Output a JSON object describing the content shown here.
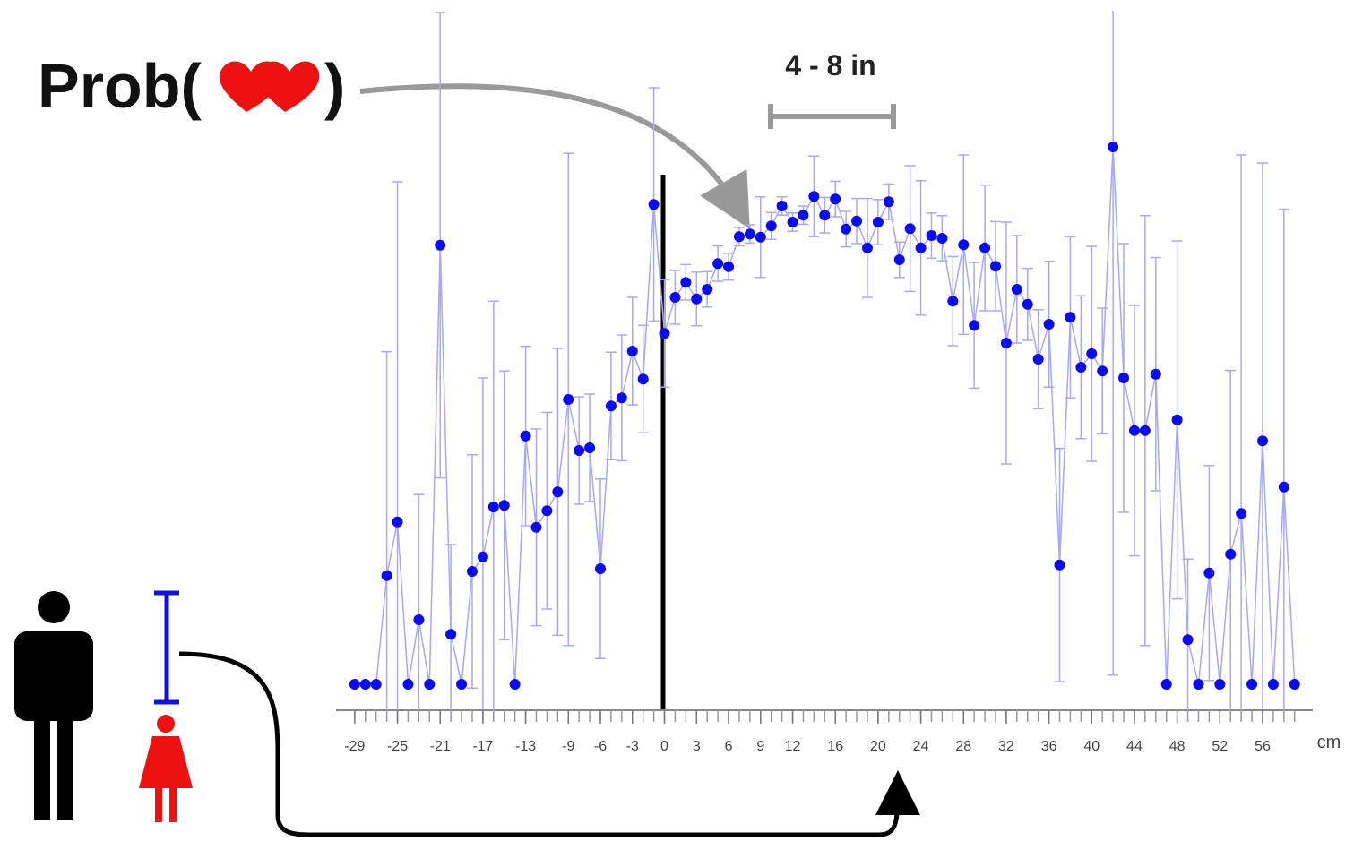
{
  "chart_data": {
    "type": "errorbar",
    "title_left": "Prob(",
    "title_right": ")",
    "bracket_label": "4 - 8 in",
    "x_label": "cm",
    "x": [
      -29,
      -28,
      -27,
      -26,
      -25,
      -24,
      -23,
      -22,
      -21,
      -20,
      -19,
      -18,
      -17,
      -16,
      -15,
      -14,
      -13,
      -12,
      -11,
      -10,
      -9,
      -8,
      -7,
      -6,
      -5,
      -4,
      -3,
      -2,
      -1,
      0,
      1,
      2,
      3,
      4,
      5,
      6,
      7,
      8,
      9,
      10,
      11,
      12,
      13,
      14,
      15,
      16,
      17,
      18,
      19,
      20,
      21,
      22,
      23,
      24,
      25,
      26,
      27,
      28,
      29,
      30,
      31,
      32,
      33,
      34,
      35,
      36,
      37,
      38,
      39,
      40,
      41,
      42,
      43,
      44,
      45,
      46,
      47,
      48,
      49,
      50,
      51,
      52,
      53,
      54,
      55,
      56,
      57,
      58,
      59
    ],
    "series": [
      {
        "color": "#0a0af5",
        "line_color": "#a8a8f4",
        "values": [
          0,
          0,
          0,
          0.202,
          0.302,
          0,
          0.12,
          0,
          0.817,
          0.093,
          0,
          0.21,
          0.237,
          0.33,
          0.333,
          0,
          0.462,
          0.292,
          0.323,
          0.358,
          0.53,
          0.435,
          0.44,
          0.215,
          0.518,
          0.533,
          0.62,
          0.568,
          0.893,
          0.653,
          0.72,
          0.748,
          0.717,
          0.735,
          0.783,
          0.777,
          0.833,
          0.838,
          0.832,
          0.853,
          0.89,
          0.86,
          0.873,
          0.908,
          0.873,
          0.903,
          0.847,
          0.862,
          0.812,
          0.86,
          0.898,
          0.79,
          0.848,
          0.812,
          0.835,
          0.83,
          0.713,
          0.818,
          0.668,
          0.812,
          0.778,
          0.635,
          0.735,
          0.707,
          0.605,
          0.67,
          0.222,
          0.683,
          0.59,
          0.615,
          0.583,
          1.0,
          0.57,
          0.472,
          0.472,
          0.577,
          0,
          0.492,
          0.083,
          0,
          0.207,
          0,
          0.242,
          0.318,
          0,
          0.453,
          0,
          0.367,
          0
        ],
        "errors": [
          0,
          0,
          0,
          0.417,
          0.633,
          0,
          0.233,
          0,
          0.433,
          0.167,
          0,
          0.217,
          0.333,
          0.383,
          0.25,
          0,
          0.167,
          0.183,
          0.183,
          0.267,
          0.458,
          0.1,
          0.1,
          0.167,
          0.1,
          0.117,
          0.1,
          0.1,
          0.217,
          0.1,
          0.05,
          0.033,
          0.05,
          0.033,
          0.033,
          0.025,
          0.017,
          0.017,
          0.075,
          0.025,
          0.017,
          0.017,
          0.017,
          0.075,
          0.033,
          0.033,
          0.033,
          0.042,
          0.092,
          0.042,
          0.033,
          0.033,
          0.117,
          0.125,
          0.042,
          0.042,
          0.083,
          0.167,
          0.117,
          0.117,
          0.083,
          0.225,
          0.1,
          0.067,
          0.092,
          0.117,
          0.217,
          0.15,
          0.133,
          0.2,
          0.117,
          0.983,
          0.25,
          0.233,
          0.4,
          0.217,
          0,
          0.333,
          0.15,
          0,
          0.2,
          0,
          0.342,
          0.667,
          0,
          0.517,
          0,
          0.517,
          0
        ]
      }
    ],
    "xlim": [
      -30.75,
      60.7
    ],
    "ylim": [
      0,
      1.0
    ],
    "xticks": [
      -29,
      -25,
      -21,
      -17,
      -13,
      -9,
      -6,
      -3,
      0,
      3,
      6,
      9,
      12,
      16,
      20,
      24,
      28,
      32,
      36,
      40,
      44,
      48,
      52,
      56
    ]
  }
}
